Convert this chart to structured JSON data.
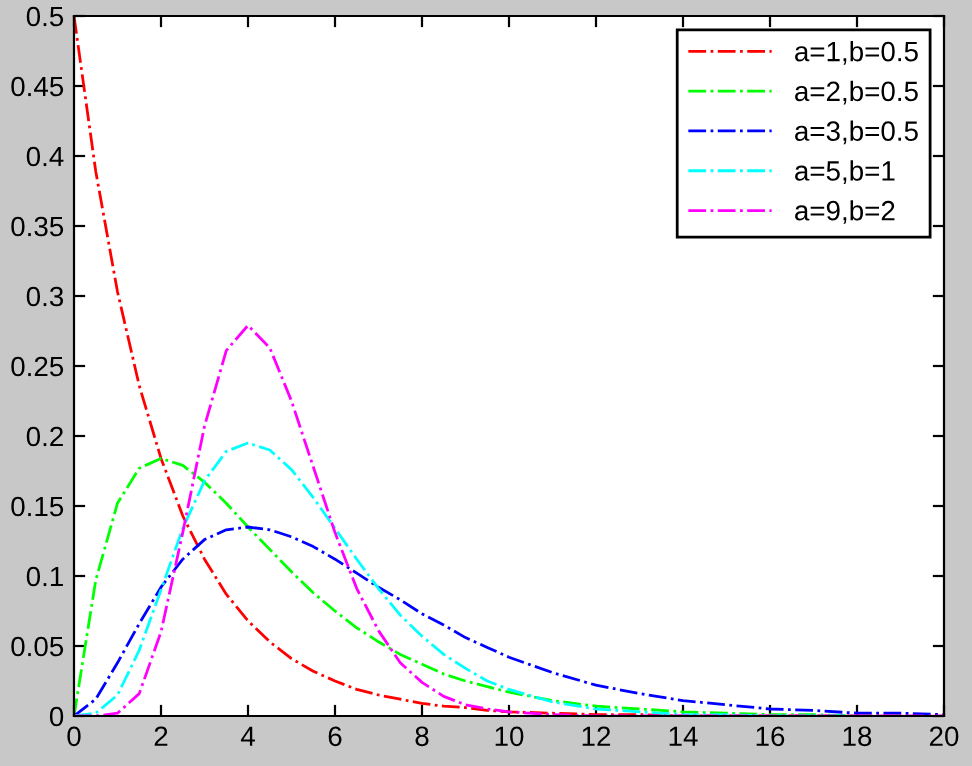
{
  "chart_data": {
    "type": "line",
    "line_style": "dashdot",
    "legend": "top right",
    "grid": false,
    "x": [
      0,
      0.5,
      1,
      1.5,
      2,
      2.5,
      3,
      3.5,
      4,
      4.5,
      5,
      5.5,
      6,
      6.5,
      7,
      7.5,
      8,
      8.5,
      9,
      9.5,
      10,
      11,
      12,
      13,
      14,
      15,
      16,
      17,
      18,
      19,
      20
    ],
    "xlim": [
      0,
      20
    ],
    "xticks": [
      0,
      2,
      4,
      6,
      8,
      10,
      12,
      14,
      16,
      18,
      20
    ],
    "ylim": [
      0,
      0.5
    ],
    "yticks": [
      0,
      0.05,
      0.1,
      0.15,
      0.2,
      0.25,
      0.3,
      0.35,
      0.4,
      0.45,
      0.5
    ],
    "series": [
      {
        "name": "a=1,b=0.5",
        "color": "#ff0000",
        "values": [
          0.5,
          0.389,
          0.303,
          0.236,
          0.184,
          0.143,
          0.112,
          0.087,
          0.068,
          0.053,
          0.041,
          0.032,
          0.025,
          0.019,
          0.015,
          0.012,
          0.009,
          0.007,
          0.006,
          0.004,
          0.003,
          0.002,
          0.001,
          0.001,
          0,
          0,
          0,
          0,
          0,
          0,
          0
        ]
      },
      {
        "name": "a=2,b=0.5",
        "color": "#00ff00",
        "values": [
          0,
          0.097,
          0.152,
          0.177,
          0.184,
          0.179,
          0.167,
          0.152,
          0.135,
          0.119,
          0.103,
          0.088,
          0.075,
          0.063,
          0.053,
          0.044,
          0.037,
          0.03,
          0.025,
          0.021,
          0.017,
          0.011,
          0.007,
          0.005,
          0.003,
          0.002,
          0.001,
          0.001,
          0,
          null,
          null
        ]
      },
      {
        "name": "a=3,b=0.5",
        "color": "#0000ff",
        "values": [
          0,
          0.012,
          0.038,
          0.066,
          0.092,
          0.112,
          0.126,
          0.133,
          0.135,
          0.133,
          0.128,
          0.121,
          0.112,
          0.102,
          0.092,
          0.083,
          0.073,
          0.065,
          0.056,
          0.049,
          0.042,
          0.031,
          0.022,
          0.016,
          0.011,
          0.008,
          0.005,
          0.004,
          0.002,
          0.002,
          0.001
        ]
      },
      {
        "name": "a=5,b=1",
        "color": "#00ffff",
        "values": [
          0,
          0.002,
          0.015,
          0.047,
          0.09,
          0.134,
          0.168,
          0.189,
          0.195,
          0.19,
          0.176,
          0.156,
          0.134,
          0.112,
          0.091,
          0.072,
          0.057,
          0.044,
          0.034,
          0.025,
          0.019,
          0.01,
          0.005,
          0.003,
          0.001,
          0.001,
          0,
          0,
          0,
          null,
          null
        ]
      },
      {
        "name": "a=9,b=2",
        "color": "#ff00ff",
        "values": [
          0,
          0,
          0.002,
          0.016,
          0.06,
          0.131,
          0.207,
          0.261,
          0.279,
          0.263,
          0.225,
          0.178,
          0.131,
          0.091,
          0.061,
          0.038,
          0.024,
          0.014,
          0.008,
          0.005,
          0.003,
          0.001,
          0,
          0,
          0,
          0,
          0,
          0,
          0,
          0,
          0
        ]
      }
    ]
  }
}
